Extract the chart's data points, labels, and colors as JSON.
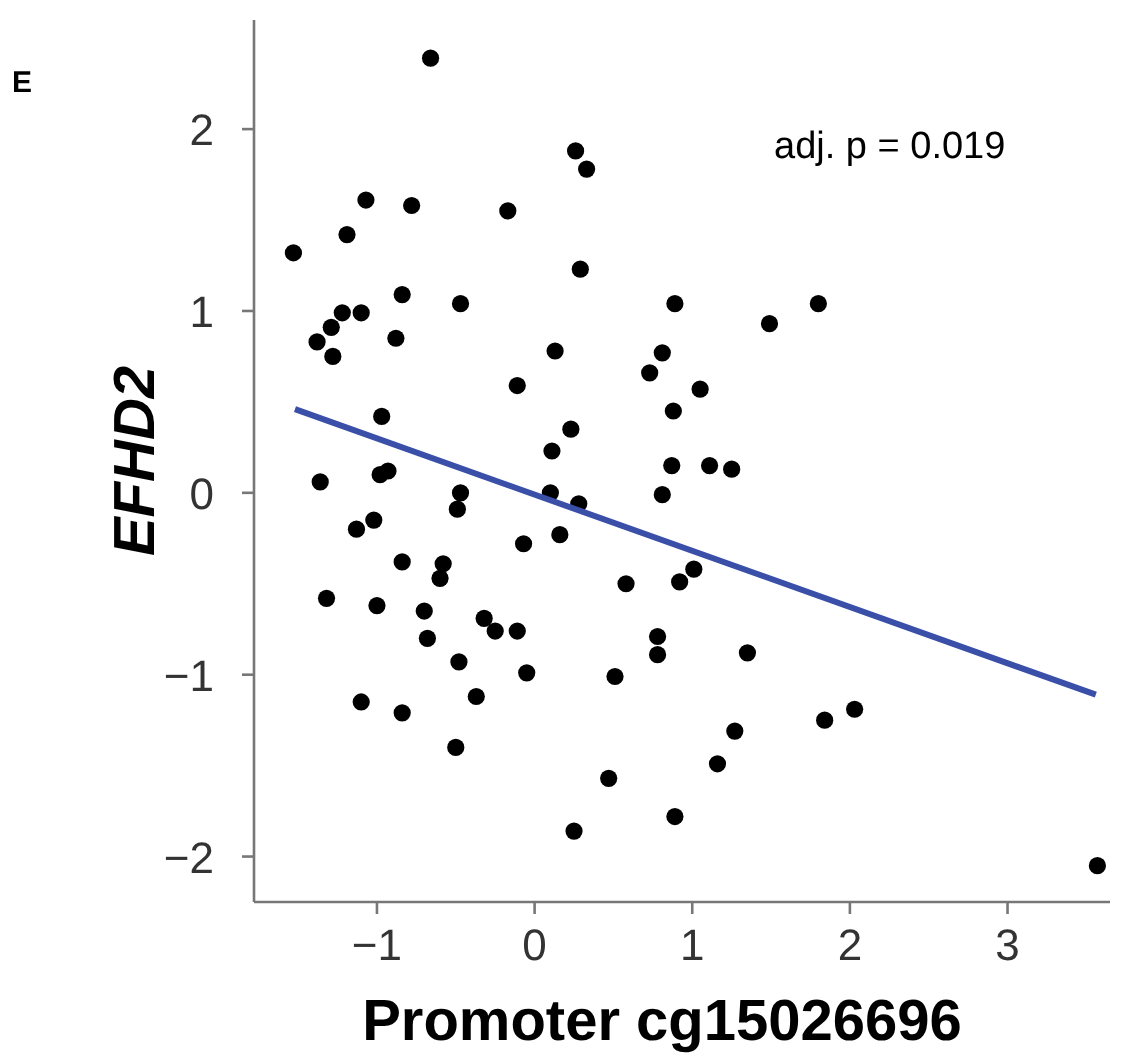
{
  "chart_data": {
    "type": "scatter",
    "xlabel": "Promoter cg15026696",
    "ylabel": "EFHD2",
    "annotations": [
      "E",
      "adj. p = 0.019"
    ],
    "xlim": [
      -1.78,
      3.65
    ],
    "ylim": [
      -2.25,
      2.6
    ],
    "xticks": [
      -1,
      0,
      1,
      2,
      3
    ],
    "yticks": [
      -2,
      -1,
      0,
      1,
      2
    ],
    "grid": false,
    "marker": "circle",
    "series": [
      {
        "color": "#000000",
        "x": [
          -0.66,
          0.26,
          0.33,
          -1.53,
          -1.19,
          -1.07,
          -0.78,
          -0.17,
          0.29,
          -1.38,
          -1.29,
          -1.22,
          -1.1,
          -1.28,
          -0.84,
          -0.88,
          -0.47,
          0.13,
          -0.11,
          0.73,
          -0.97,
          0.23,
          0.11,
          -1.36,
          -0.98,
          -0.93,
          -0.47,
          0.1,
          0.28,
          0.89,
          1.49,
          1.8,
          0.81,
          1.05,
          0.88,
          0.87,
          1.11,
          1.25,
          0.81,
          -0.49,
          -1.13,
          -1.02,
          -0.07,
          0.16,
          -0.84,
          -0.58,
          -0.6,
          0.58,
          -1.32,
          -1.0,
          -0.7,
          -0.32,
          -0.25,
          -0.11,
          -0.68,
          -0.48,
          -0.05,
          0.51,
          -1.1,
          -0.84,
          -0.37,
          -0.5,
          0.47,
          0.25,
          0.92,
          1.01,
          0.78,
          0.78,
          1.35,
          1.84,
          2.03,
          1.27,
          1.16,
          0.89,
          3.57
        ],
        "values": [
          2.39,
          1.88,
          1.78,
          1.32,
          1.42,
          1.61,
          1.58,
          1.55,
          1.23,
          0.83,
          0.91,
          0.99,
          0.99,
          0.75,
          1.09,
          0.85,
          1.04,
          0.78,
          0.59,
          0.66,
          0.42,
          0.35,
          0.23,
          0.06,
          0.1,
          0.12,
          0.0,
          0.0,
          -0.06,
          1.04,
          0.93,
          1.04,
          0.77,
          0.57,
          0.45,
          0.15,
          0.15,
          0.13,
          -0.01,
          -0.09,
          -0.2,
          -0.15,
          -0.28,
          -0.23,
          -0.38,
          -0.39,
          -0.47,
          -0.5,
          -0.58,
          -0.62,
          -0.65,
          -0.69,
          -0.76,
          -0.76,
          -0.8,
          -0.93,
          -0.99,
          -1.01,
          -1.15,
          -1.21,
          -1.12,
          -1.4,
          -1.57,
          -1.86,
          -0.49,
          -0.42,
          -0.79,
          -0.89,
          -0.88,
          -1.25,
          -1.19,
          -1.31,
          -1.49,
          -1.78,
          -2.05
        ]
      },
      {
        "type": "line",
        "color": "#3a4fa8",
        "marker": "none",
        "line_style": "solid",
        "x": [
          -1.52,
          3.56
        ],
        "values": [
          0.46,
          -1.11
        ]
      }
    ]
  }
}
